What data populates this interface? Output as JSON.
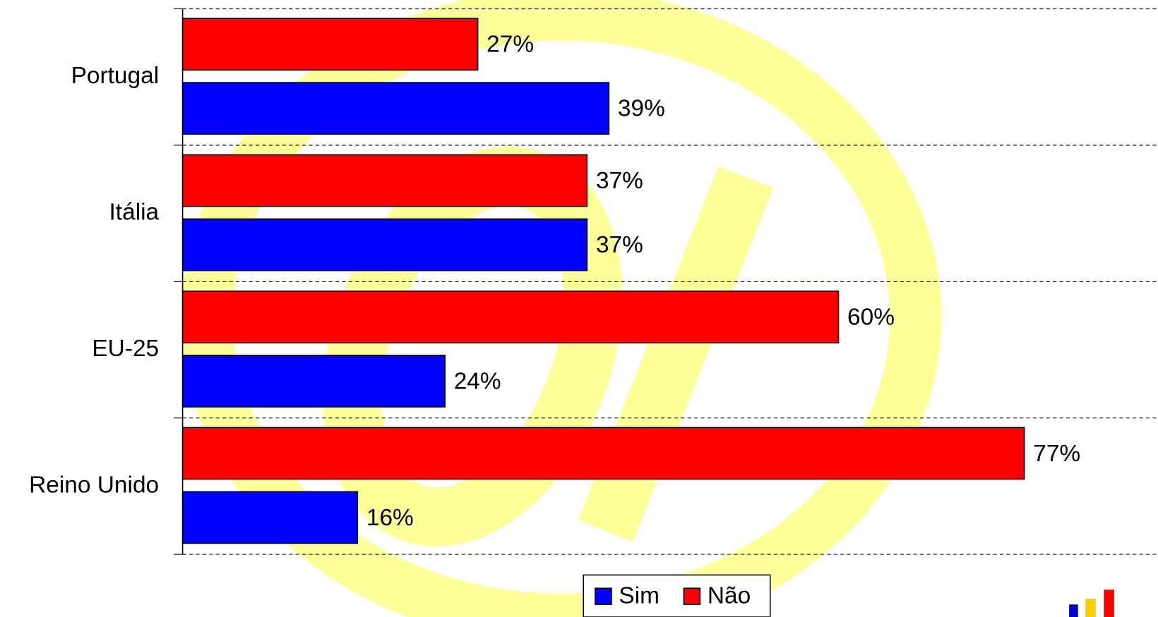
{
  "chart_data": {
    "type": "hbar",
    "categories": [
      "Portugal",
      "Itália",
      "EU-25",
      "Reino Unido"
    ],
    "series": [
      {
        "name": "Sim",
        "color": "#0000ff",
        "values": [
          39,
          37,
          24,
          16
        ],
        "value_labels": [
          "39%",
          "37%",
          "24%",
          "16%"
        ]
      },
      {
        "name": "Não",
        "color": "#ff0000",
        "values": [
          27,
          37,
          60,
          77
        ],
        "value_labels": [
          "27%",
          "37%",
          "60%",
          "77%"
        ]
      }
    ],
    "xlim": [
      0,
      89
    ],
    "legend": "bottom"
  }
}
